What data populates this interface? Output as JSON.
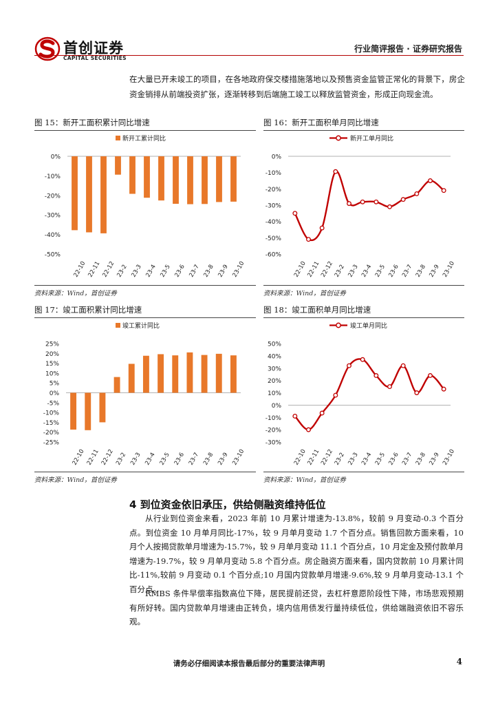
{
  "header": {
    "logo_cn": "首创证券",
    "logo_en": "CAPITAL SECURITIES",
    "report_type": "行业简评报告 · 证券研究报告"
  },
  "intro_text": "在大量已开未竣工的项目，在各地政府保交楼措施落地以及预售资金监管正常化的背景下，房企资金销排从前端投资扩张，逐渐转移到后端施工竣工以释放监管资金，形成正向现金流。",
  "figures": [
    {
      "caption": "图 15：新开工面积累计同比增速",
      "source": "资料来源：Wind，首创证券",
      "chart_data": {
        "type": "bar",
        "legend": "新开工累计同比",
        "color": "#E8782A",
        "categories": [
          "22-10",
          "22-11",
          "22-12",
          "23-2",
          "23-3",
          "23-4",
          "23-5",
          "23-6",
          "23-7",
          "23-8",
          "23-9",
          "23-10"
        ],
        "values": [
          -37.8,
          -38.9,
          -39.4,
          -9.4,
          -19.2,
          -21.2,
          -22.6,
          -24.3,
          -24.5,
          -24.4,
          -23.4,
          -23.2
        ],
        "ylim": [
          -50,
          0
        ],
        "yticks": [
          0,
          -10,
          -20,
          -30,
          -40,
          -50
        ],
        "ytick_labels": [
          "0%",
          "-10%",
          "-20%",
          "-30%",
          "-40%",
          "-50%"
        ]
      }
    },
    {
      "caption": "图 16：新开工面积单月同比增速",
      "source": "资料来源：Wind，首创证券",
      "chart_data": {
        "type": "line",
        "legend": "新开工单月同比",
        "color": "#C00000",
        "categories": [
          "22-10",
          "22-11",
          "22-12",
          "23-2",
          "23-3",
          "23-4",
          "23-5",
          "23-6",
          "23-7",
          "23-8",
          "23-9",
          "23-10"
        ],
        "values": [
          -35,
          -51,
          -44,
          -9.4,
          -29,
          -28,
          -28,
          -31,
          -26.5,
          -23,
          -15,
          -21
        ],
        "ylim": [
          -60,
          0
        ],
        "yticks": [
          0,
          -10,
          -20,
          -30,
          -40,
          -50,
          -60
        ],
        "ytick_labels": [
          "0%",
          "-10%",
          "-20%",
          "-30%",
          "-40%",
          "-50%",
          "-60%"
        ]
      }
    },
    {
      "caption": "图 17：竣工面积累计同比增速",
      "source": "资料来源：Wind，首创证券",
      "chart_data": {
        "type": "bar",
        "legend": "竣工累计同比",
        "color": "#E8782A",
        "categories": [
          "22-10",
          "22-11",
          "22-12",
          "23-2",
          "23-3",
          "23-4",
          "23-5",
          "23-6",
          "23-7",
          "23-8",
          "23-9",
          "23-10"
        ],
        "values": [
          -18.7,
          -19.0,
          -15.0,
          8.0,
          14.7,
          18.8,
          19.6,
          19.0,
          20.5,
          19.2,
          19.8,
          19.0
        ],
        "ylim": [
          -25,
          25
        ],
        "yticks": [
          25,
          20,
          15,
          10,
          5,
          0,
          -5,
          -10,
          -15,
          -20,
          -25
        ],
        "ytick_labels": [
          "25%",
          "20%",
          "15%",
          "10%",
          "5%",
          "0%",
          "-5%",
          "-10%",
          "-15%",
          "-20%",
          "-25%"
        ]
      }
    },
    {
      "caption": "图 18：竣工面积单月同比增速",
      "source": "资料来源：Wind，首创证券",
      "chart_data": {
        "type": "line",
        "legend": "竣工单月同比",
        "color": "#C00000",
        "categories": [
          "22-10",
          "22-11",
          "22-12",
          "23-2",
          "23-3",
          "23-4",
          "23-5",
          "23-6",
          "23-7",
          "23-8",
          "23-9",
          "23-10"
        ],
        "values": [
          -9,
          -20,
          -6.5,
          8,
          32,
          37,
          24,
          15,
          32,
          10,
          24,
          13
        ],
        "ylim": [
          -30,
          50
        ],
        "yticks": [
          50,
          40,
          30,
          20,
          10,
          0,
          -10,
          -20,
          -30
        ],
        "ytick_labels": [
          "50%",
          "40%",
          "30%",
          "20%",
          "10%",
          "0%",
          "-10%",
          "-20%",
          "-30%"
        ]
      }
    }
  ],
  "section_title": "4 到位资金依旧承压，供给侧融资维持低位",
  "paragraphs": [
    "从行业到位资金来看，2023 年前 10 月累计增速为-13.8%，较前 9 月变动-0.3 个百分点。到位资金 10 月单月同比-17%，较 9 月单月变动 1.7 个百分点。销售回款方面来看，10 月个人按揭贷款单月增速为-15.7%，较 9 月单月变动 11.1 个百分点，10 月定金及预付款单月增速为-19.7%，较 9 月单月变动 5.8 个百分点。房企融资方面来看，国内贷款前 10 月累计同比-11%,较前 9 月变动 0.1 个百分点;10 月国内贷款单月增速-9.6%,较 9 月单月变动-13.1 个百分点。",
    "RMBS 条件早偿率指数高位下降，居民提前还贷，去杠杆意愿阶段性下降，市场悲观预期有所好转。国内贷款单月增速由正转负，境内信用债发行量持续低位，供给端融资依旧不容乐观。"
  ],
  "footer": {
    "disclaimer": "请务必仔细阅读本报告最后部分的重要法律声明",
    "page_number": "4"
  }
}
